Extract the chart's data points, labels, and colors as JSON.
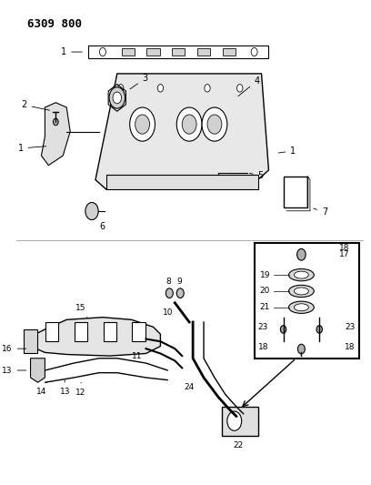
{
  "title": "6309 800",
  "bg_color": "#ffffff",
  "fg_color": "#000000",
  "fig_width": 4.08,
  "fig_height": 5.33,
  "dpi": 100
}
